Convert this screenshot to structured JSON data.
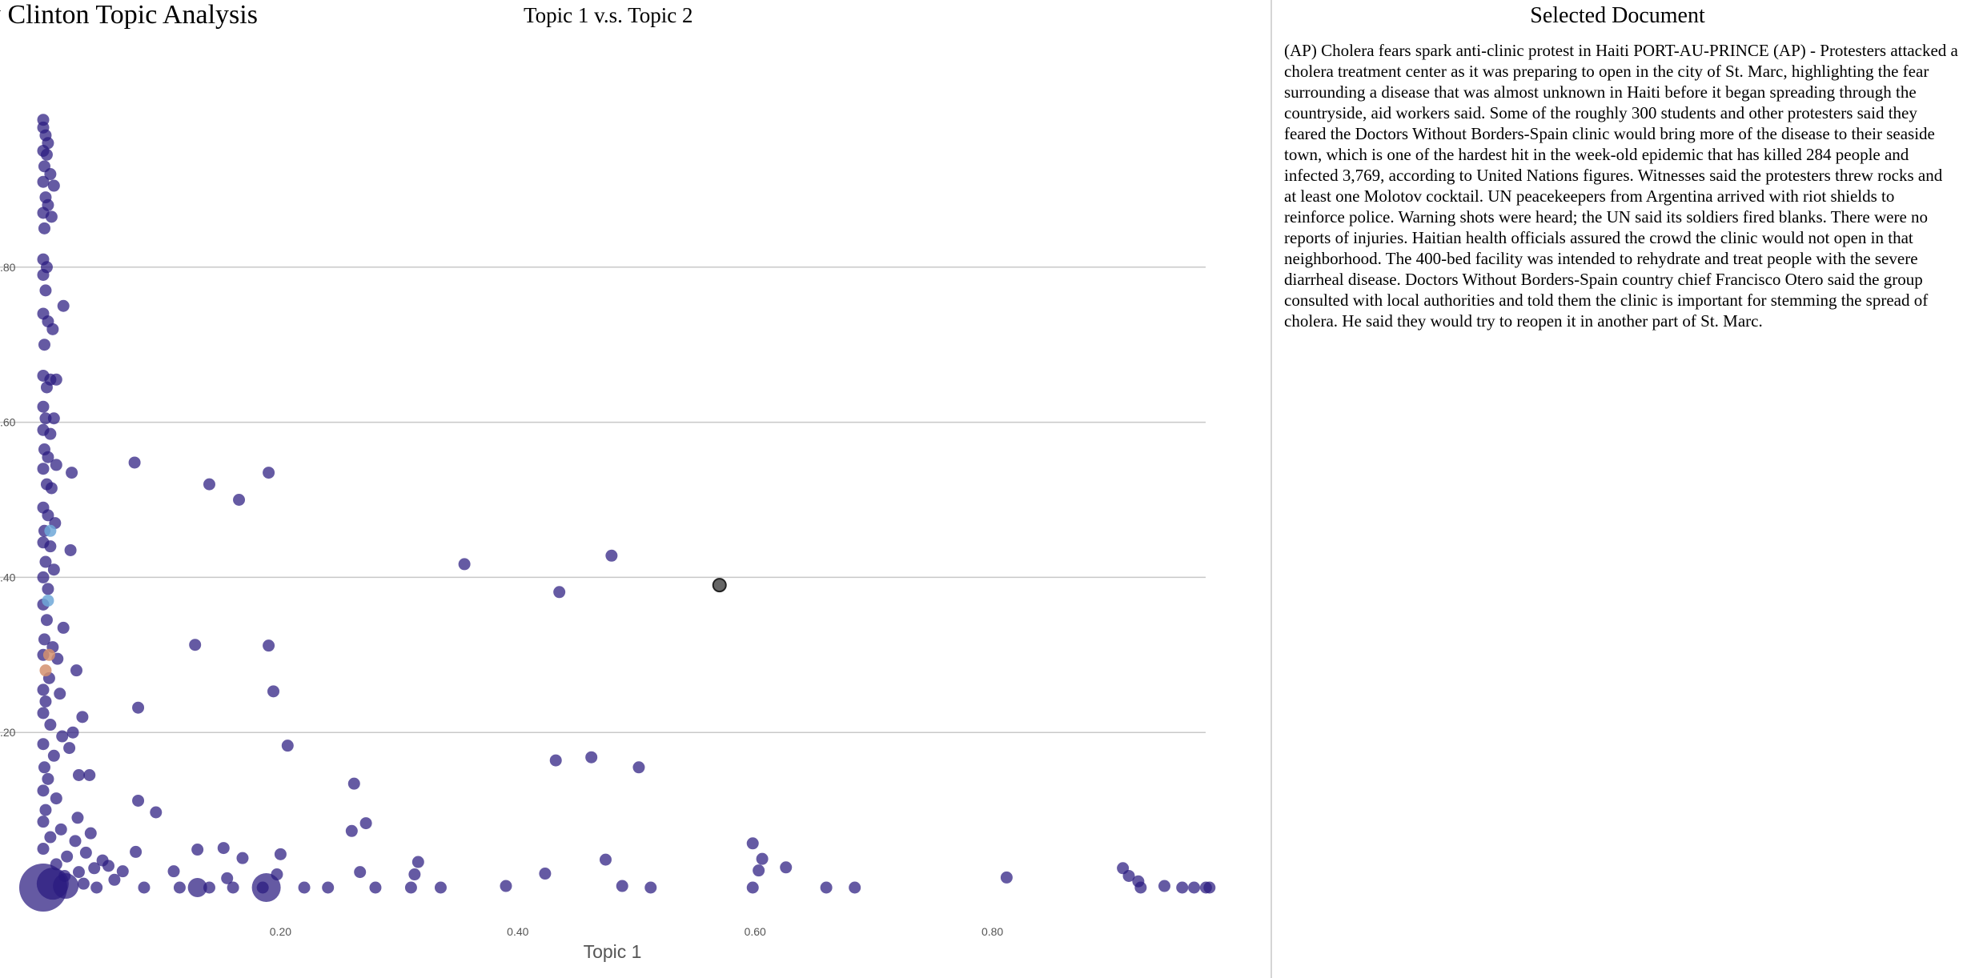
{
  "app": {
    "title": "y Clinton Topic Analysis"
  },
  "chart_data": {
    "type": "scatter",
    "title": "Topic 1 v.s. Topic 2",
    "xlabel": "Topic 1",
    "ylabel": "",
    "xlim": [
      0,
      1.0
    ],
    "ylim": [
      0,
      1.0
    ],
    "xticks": [
      "0.20",
      "0.40",
      "0.60",
      "0.80"
    ],
    "yticks": [
      ".20",
      ".40",
      ".60",
      ".80"
    ],
    "grid": "horizontal",
    "point_color": "#2a1a7f",
    "highlight_color": "#555555",
    "points": [
      {
        "x": 0.0,
        "y": 0.99
      },
      {
        "x": 0.0,
        "y": 0.98
      },
      {
        "x": 0.002,
        "y": 0.97
      },
      {
        "x": 0.004,
        "y": 0.96
      },
      {
        "x": 0.0,
        "y": 0.95
      },
      {
        "x": 0.003,
        "y": 0.945
      },
      {
        "x": 0.001,
        "y": 0.93
      },
      {
        "x": 0.006,
        "y": 0.92
      },
      {
        "x": 0.0,
        "y": 0.91
      },
      {
        "x": 0.009,
        "y": 0.905
      },
      {
        "x": 0.002,
        "y": 0.89
      },
      {
        "x": 0.004,
        "y": 0.88
      },
      {
        "x": 0.0,
        "y": 0.87
      },
      {
        "x": 0.007,
        "y": 0.865
      },
      {
        "x": 0.001,
        "y": 0.85
      },
      {
        "x": 0.0,
        "y": 0.81
      },
      {
        "x": 0.003,
        "y": 0.8
      },
      {
        "x": 0.0,
        "y": 0.79
      },
      {
        "x": 0.002,
        "y": 0.77
      },
      {
        "x": 0.017,
        "y": 0.75
      },
      {
        "x": 0.0,
        "y": 0.74
      },
      {
        "x": 0.004,
        "y": 0.73
      },
      {
        "x": 0.008,
        "y": 0.72
      },
      {
        "x": 0.001,
        "y": 0.7
      },
      {
        "x": 0.0,
        "y": 0.66
      },
      {
        "x": 0.006,
        "y": 0.655
      },
      {
        "x": 0.011,
        "y": 0.655
      },
      {
        "x": 0.003,
        "y": 0.645
      },
      {
        "x": 0.0,
        "y": 0.62
      },
      {
        "x": 0.002,
        "y": 0.605
      },
      {
        "x": 0.009,
        "y": 0.605
      },
      {
        "x": 0.0,
        "y": 0.59
      },
      {
        "x": 0.006,
        "y": 0.585
      },
      {
        "x": 0.001,
        "y": 0.565
      },
      {
        "x": 0.004,
        "y": 0.555
      },
      {
        "x": 0.011,
        "y": 0.545
      },
      {
        "x": 0.0,
        "y": 0.54
      },
      {
        "x": 0.024,
        "y": 0.535
      },
      {
        "x": 0.003,
        "y": 0.52
      },
      {
        "x": 0.007,
        "y": 0.515
      },
      {
        "x": 0.0,
        "y": 0.49
      },
      {
        "x": 0.004,
        "y": 0.48
      },
      {
        "x": 0.01,
        "y": 0.47
      },
      {
        "x": 0.001,
        "y": 0.46
      },
      {
        "x": 0.0,
        "y": 0.445
      },
      {
        "x": 0.006,
        "y": 0.44
      },
      {
        "x": 0.023,
        "y": 0.435
      },
      {
        "x": 0.002,
        "y": 0.42
      },
      {
        "x": 0.009,
        "y": 0.41
      },
      {
        "x": 0.0,
        "y": 0.4
      },
      {
        "x": 0.004,
        "y": 0.385
      },
      {
        "x": 0.0,
        "y": 0.365
      },
      {
        "x": 0.003,
        "y": 0.345
      },
      {
        "x": 0.017,
        "y": 0.335
      },
      {
        "x": 0.001,
        "y": 0.32
      },
      {
        "x": 0.008,
        "y": 0.31
      },
      {
        "x": 0.0,
        "y": 0.3
      },
      {
        "x": 0.012,
        "y": 0.295
      },
      {
        "x": 0.028,
        "y": 0.28
      },
      {
        "x": 0.005,
        "y": 0.27
      },
      {
        "x": 0.0,
        "y": 0.255
      },
      {
        "x": 0.014,
        "y": 0.25
      },
      {
        "x": 0.002,
        "y": 0.24
      },
      {
        "x": 0.0,
        "y": 0.225
      },
      {
        "x": 0.033,
        "y": 0.22
      },
      {
        "x": 0.006,
        "y": 0.21
      },
      {
        "x": 0.025,
        "y": 0.2
      },
      {
        "x": 0.016,
        "y": 0.195
      },
      {
        "x": 0.0,
        "y": 0.185
      },
      {
        "x": 0.022,
        "y": 0.18
      },
      {
        "x": 0.009,
        "y": 0.17
      },
      {
        "x": 0.001,
        "y": 0.155
      },
      {
        "x": 0.03,
        "y": 0.145
      },
      {
        "x": 0.039,
        "y": 0.145
      },
      {
        "x": 0.004,
        "y": 0.14
      },
      {
        "x": 0.0,
        "y": 0.125
      },
      {
        "x": 0.011,
        "y": 0.115
      },
      {
        "x": 0.002,
        "y": 0.1
      },
      {
        "x": 0.029,
        "y": 0.09
      },
      {
        "x": 0.0,
        "y": 0.085
      },
      {
        "x": 0.015,
        "y": 0.075
      },
      {
        "x": 0.04,
        "y": 0.07
      },
      {
        "x": 0.006,
        "y": 0.065
      },
      {
        "x": 0.027,
        "y": 0.06
      },
      {
        "x": 0.0,
        "y": 0.05
      },
      {
        "x": 0.036,
        "y": 0.045
      },
      {
        "x": 0.02,
        "y": 0.04
      },
      {
        "x": 0.05,
        "y": 0.035
      },
      {
        "x": 0.011,
        "y": 0.03
      },
      {
        "x": 0.043,
        "y": 0.025
      },
      {
        "x": 0.03,
        "y": 0.02
      },
      {
        "x": 0.018,
        "y": 0.015
      },
      {
        "x": 0.06,
        "y": 0.01
      },
      {
        "x": 0.034,
        "y": 0.005
      },
      {
        "x": 0.045,
        "y": 0.0
      },
      {
        "x": 0.077,
        "y": 0.548
      },
      {
        "x": 0.14,
        "y": 0.52
      },
      {
        "x": 0.165,
        "y": 0.5
      },
      {
        "x": 0.19,
        "y": 0.535
      },
      {
        "x": 0.128,
        "y": 0.313
      },
      {
        "x": 0.19,
        "y": 0.312
      },
      {
        "x": 0.08,
        "y": 0.232
      },
      {
        "x": 0.194,
        "y": 0.253
      },
      {
        "x": 0.206,
        "y": 0.183
      },
      {
        "x": 0.08,
        "y": 0.112
      },
      {
        "x": 0.095,
        "y": 0.097
      },
      {
        "x": 0.262,
        "y": 0.134
      },
      {
        "x": 0.26,
        "y": 0.073
      },
      {
        "x": 0.272,
        "y": 0.083
      },
      {
        "x": 0.078,
        "y": 0.046
      },
      {
        "x": 0.13,
        "y": 0.049
      },
      {
        "x": 0.152,
        "y": 0.051
      },
      {
        "x": 0.2,
        "y": 0.043
      },
      {
        "x": 0.168,
        "y": 0.038
      },
      {
        "x": 0.055,
        "y": 0.028
      },
      {
        "x": 0.067,
        "y": 0.021
      },
      {
        "x": 0.11,
        "y": 0.021
      },
      {
        "x": 0.197,
        "y": 0.017
      },
      {
        "x": 0.155,
        "y": 0.012
      },
      {
        "x": 0.085,
        "y": 0.0
      },
      {
        "x": 0.115,
        "y": 0.0
      },
      {
        "x": 0.14,
        "y": 0.0
      },
      {
        "x": 0.16,
        "y": 0.0
      },
      {
        "x": 0.185,
        "y": 0.0
      },
      {
        "x": 0.22,
        "y": 0.0
      },
      {
        "x": 0.24,
        "y": 0.0
      },
      {
        "x": 0.28,
        "y": 0.0
      },
      {
        "x": 0.31,
        "y": 0.0
      },
      {
        "x": 0.335,
        "y": 0.0
      },
      {
        "x": 0.267,
        "y": 0.02
      },
      {
        "x": 0.313,
        "y": 0.017
      },
      {
        "x": 0.316,
        "y": 0.033
      },
      {
        "x": 0.355,
        "y": 0.417
      },
      {
        "x": 0.479,
        "y": 0.428
      },
      {
        "x": 0.435,
        "y": 0.381
      },
      {
        "x": 0.432,
        "y": 0.164
      },
      {
        "x": 0.462,
        "y": 0.168
      },
      {
        "x": 0.502,
        "y": 0.155
      },
      {
        "x": 0.474,
        "y": 0.036
      },
      {
        "x": 0.423,
        "y": 0.018
      },
      {
        "x": 0.488,
        "y": 0.002
      },
      {
        "x": 0.39,
        "y": 0.002
      },
      {
        "x": 0.512,
        "y": 0.0
      },
      {
        "x": 0.598,
        "y": 0.0
      },
      {
        "x": 0.598,
        "y": 0.057
      },
      {
        "x": 0.606,
        "y": 0.037
      },
      {
        "x": 0.626,
        "y": 0.026
      },
      {
        "x": 0.603,
        "y": 0.022
      },
      {
        "x": 0.66,
        "y": 0.0
      },
      {
        "x": 0.684,
        "y": 0.0
      },
      {
        "x": 0.812,
        "y": 0.013
      },
      {
        "x": 0.91,
        "y": 0.025
      },
      {
        "x": 0.915,
        "y": 0.015
      },
      {
        "x": 0.923,
        "y": 0.008
      },
      {
        "x": 0.925,
        "y": 0.0
      },
      {
        "x": 0.945,
        "y": 0.002
      },
      {
        "x": 0.96,
        "y": 0.0
      },
      {
        "x": 0.97,
        "y": 0.0
      },
      {
        "x": 0.98,
        "y": 0.0
      },
      {
        "x": 0.983,
        "y": 0.0
      }
    ],
    "big_points": [
      {
        "x": 0.0,
        "y": 0.0,
        "r": 30
      },
      {
        "x": 0.008,
        "y": 0.005,
        "r": 20
      },
      {
        "x": 0.019,
        "y": 0.002,
        "r": 16
      },
      {
        "x": 0.188,
        "y": 0.0,
        "r": 18
      },
      {
        "x": 0.13,
        "y": 0.0,
        "r": 12
      }
    ],
    "colored_points": [
      {
        "x": 0.004,
        "y": 0.37,
        "color": "#6fa8d8"
      },
      {
        "x": 0.005,
        "y": 0.3,
        "color": "#d4906f"
      },
      {
        "x": 0.002,
        "y": 0.28,
        "color": "#d4906f"
      },
      {
        "x": 0.006,
        "y": 0.46,
        "color": "#6fa8d8"
      }
    ],
    "selected_point": {
      "x": 0.57,
      "y": 0.39
    }
  },
  "side_panel": {
    "title": "Selected Document",
    "text": "(AP) Cholera fears spark anti-clinic protest in Haiti PORT-AU-PRINCE (AP) - Protesters attacked a cholera treatment center as it was preparing to open in the city of St. Marc, highlighting the fear surrounding a disease that was almost unknown in Haiti before it began spreading through the countryside, aid workers said. Some of the roughly 300 students and other protesters said they feared the Doctors Without Borders-Spain clinic would bring more of the disease to their seaside town, which is one of the hardest hit in the week-old epidemic that has killed 284 people and infected 3,769, according to United Nations figures. Witnesses said the protesters threw rocks and at least one Molotov cocktail. UN peacekeepers from Argentina arrived with riot shields to reinforce police. Warning shots were heard; the UN said its soldiers fired blanks. There were no reports of injuries. Haitian health officials assured the crowd the clinic would not open in that neighborhood. The 400-bed facility was intended to rehydrate and treat people with the severe diarrheal disease. Doctors Without Borders-Spain country chief Francisco Otero said the group consulted with local authorities and told them the clinic is important for stemming the spread of cholera. He said they would try to reopen it in another part of St. Marc."
  }
}
